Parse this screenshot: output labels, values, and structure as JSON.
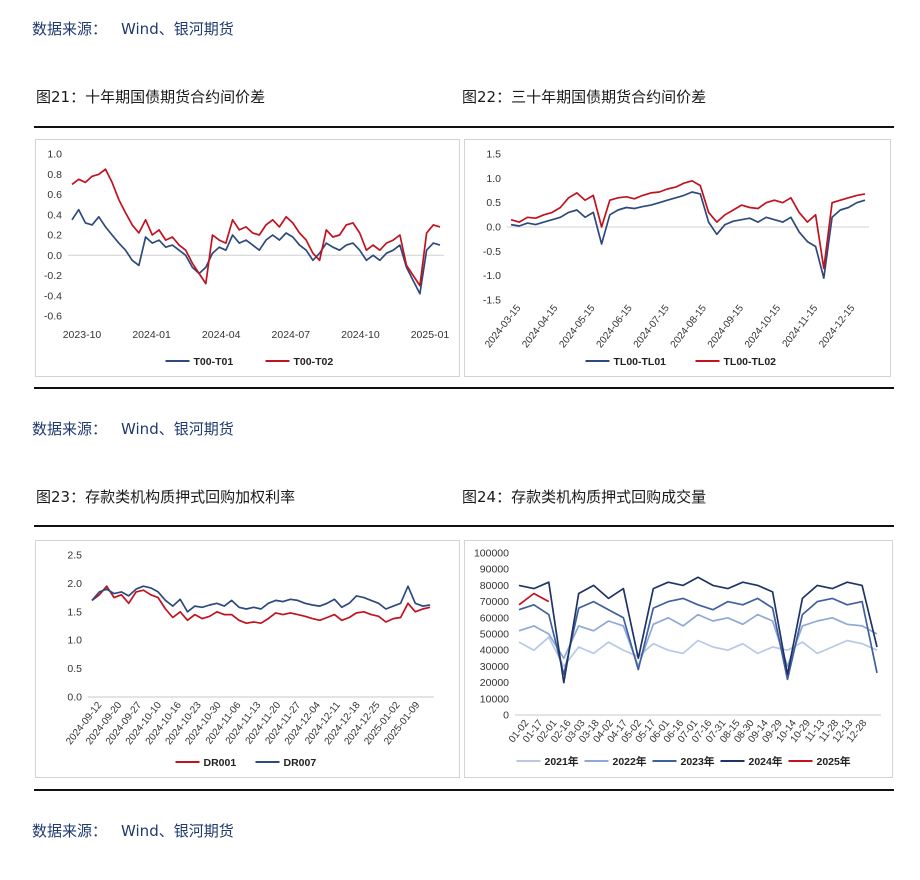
{
  "source_top": {
    "label": "数据来源：",
    "value": "Wind、银河期货"
  },
  "source_mid": {
    "label": "数据来源：",
    "value": "Wind、银河期货"
  },
  "source_bottom": {
    "label": "数据来源：",
    "value": "Wind、银河期货"
  },
  "titles": {
    "fig21": "图21：十年期国债期货合约间价差",
    "fig22": "图22：三十年期国债期货合约间价差",
    "fig23": "图23：存款类机构质押式回购加权利率",
    "fig24": "图24：存款类机构质押式回购成交量"
  },
  "colors": {
    "navy": "#2e4a7d",
    "red": "#c1121f",
    "y2021": "#b7c9e6",
    "y2022": "#8fa9d6",
    "y2023": "#3f5f9e",
    "y2024": "#1f3464",
    "y2025": "#c1121f"
  },
  "chart_data": [
    {
      "id": "fig21",
      "type": "line",
      "x_ticks": [
        "2023-10",
        "2024-01",
        "2024-04",
        "2024-07",
        "2024-10",
        "2025-01"
      ],
      "ylim": [
        -0.6,
        1.0
      ],
      "y_ticks": [
        "1.0",
        "0.8",
        "0.6",
        "0.4",
        "0.2",
        "0.0",
        "-0.2",
        "-0.4",
        "-0.6"
      ],
      "series": [
        {
          "name": "T00-T01",
          "color": "#2e4a7d",
          "values": [
            0.35,
            0.45,
            0.32,
            0.3,
            0.38,
            0.28,
            0.2,
            0.12,
            0.05,
            -0.05,
            -0.1,
            0.18,
            0.12,
            0.15,
            0.08,
            0.1,
            0.05,
            0.0,
            -0.12,
            -0.18,
            -0.12,
            0.02,
            0.08,
            0.05,
            0.2,
            0.12,
            0.15,
            0.1,
            0.05,
            0.15,
            0.2,
            0.15,
            0.22,
            0.18,
            0.1,
            0.05,
            -0.05,
            0.02,
            0.12,
            0.08,
            0.05,
            0.1,
            0.12,
            0.05,
            -0.05,
            0.0,
            -0.05,
            0.02,
            0.05,
            0.1,
            -0.12,
            -0.25,
            -0.38,
            0.05,
            0.12,
            0.1
          ]
        },
        {
          "name": "T00-T02",
          "color": "#c1121f",
          "values": [
            0.7,
            0.75,
            0.72,
            0.78,
            0.8,
            0.85,
            0.72,
            0.55,
            0.42,
            0.3,
            0.22,
            0.35,
            0.2,
            0.25,
            0.15,
            0.18,
            0.1,
            0.05,
            -0.08,
            -0.18,
            -0.28,
            0.2,
            0.15,
            0.12,
            0.35,
            0.25,
            0.28,
            0.22,
            0.2,
            0.3,
            0.35,
            0.28,
            0.38,
            0.32,
            0.22,
            0.15,
            0.02,
            -0.05,
            0.25,
            0.18,
            0.2,
            0.3,
            0.32,
            0.22,
            0.05,
            0.1,
            0.05,
            0.12,
            0.15,
            0.2,
            -0.1,
            -0.2,
            -0.3,
            0.22,
            0.3,
            0.28
          ]
        }
      ]
    },
    {
      "id": "fig22",
      "type": "line",
      "x_ticks": [
        "2024-03-15",
        "2024-04-15",
        "2024-05-15",
        "2024-06-15",
        "2024-07-15",
        "2024-08-15",
        "2024-09-15",
        "2024-10-15",
        "2024-11-15",
        "2024-12-15"
      ],
      "ylim": [
        -1.5,
        1.5
      ],
      "y_ticks": [
        "1.5",
        "1.0",
        "0.5",
        "0.0",
        "-0.5",
        "-1.0",
        "-1.5"
      ],
      "series": [
        {
          "name": "TL00-TL01",
          "color": "#2e4a7d",
          "values": [
            0.05,
            0.02,
            0.08,
            0.05,
            0.1,
            0.15,
            0.2,
            0.3,
            0.35,
            0.2,
            0.3,
            -0.35,
            0.25,
            0.35,
            0.4,
            0.38,
            0.42,
            0.45,
            0.5,
            0.55,
            0.6,
            0.65,
            0.72,
            0.68,
            0.1,
            -0.15,
            0.05,
            0.12,
            0.15,
            0.18,
            0.1,
            0.2,
            0.15,
            0.1,
            0.2,
            -0.1,
            -0.3,
            -0.4,
            -1.05,
            0.2,
            0.35,
            0.4,
            0.5,
            0.55
          ]
        },
        {
          "name": "TL00-TL02",
          "color": "#c1121f",
          "values": [
            0.15,
            0.1,
            0.2,
            0.18,
            0.25,
            0.3,
            0.4,
            0.6,
            0.7,
            0.55,
            0.65,
            0.0,
            0.55,
            0.6,
            0.62,
            0.58,
            0.65,
            0.7,
            0.72,
            0.78,
            0.82,
            0.9,
            0.95,
            0.85,
            0.3,
            0.1,
            0.25,
            0.35,
            0.45,
            0.4,
            0.38,
            0.5,
            0.55,
            0.5,
            0.6,
            0.3,
            0.1,
            0.25,
            -0.85,
            0.5,
            0.55,
            0.6,
            0.65,
            0.68
          ]
        }
      ]
    },
    {
      "id": "fig23",
      "type": "line",
      "x_ticks": [
        "2024-09-12",
        "2024-09-20",
        "2024-09-27",
        "2024-10-10",
        "2024-10-16",
        "2024-10-23",
        "2024-10-30",
        "2024-11-06",
        "2024-11-13",
        "2024-11-20",
        "2024-11-27",
        "2024-12-04",
        "2024-12-11",
        "2024-12-18",
        "2024-12-25",
        "2025-01-02",
        "2025-01-09"
      ],
      "ylim": [
        0,
        2.5
      ],
      "y_ticks": [
        "2.5",
        "2.0",
        "1.5",
        "1.0",
        "0.5",
        "0.0"
      ],
      "series": [
        {
          "name": "DR001",
          "color": "#c1121f",
          "values": [
            1.7,
            1.8,
            1.95,
            1.75,
            1.8,
            1.65,
            1.85,
            1.88,
            1.8,
            1.75,
            1.55,
            1.4,
            1.5,
            1.35,
            1.45,
            1.38,
            1.42,
            1.5,
            1.45,
            1.45,
            1.35,
            1.3,
            1.32,
            1.3,
            1.38,
            1.48,
            1.45,
            1.48,
            1.45,
            1.42,
            1.38,
            1.35,
            1.4,
            1.45,
            1.35,
            1.4,
            1.48,
            1.5,
            1.45,
            1.42,
            1.32,
            1.38,
            1.4,
            1.65,
            1.5,
            1.55,
            1.58
          ]
        },
        {
          "name": "DR007",
          "color": "#2e4a7d",
          "values": [
            1.7,
            1.85,
            1.9,
            1.82,
            1.85,
            1.78,
            1.9,
            1.95,
            1.92,
            1.85,
            1.7,
            1.6,
            1.72,
            1.5,
            1.6,
            1.58,
            1.62,
            1.65,
            1.6,
            1.7,
            1.58,
            1.55,
            1.58,
            1.55,
            1.65,
            1.7,
            1.68,
            1.72,
            1.7,
            1.65,
            1.62,
            1.6,
            1.65,
            1.72,
            1.58,
            1.65,
            1.78,
            1.75,
            1.7,
            1.65,
            1.55,
            1.6,
            1.65,
            1.95,
            1.65,
            1.6,
            1.62
          ]
        }
      ]
    },
    {
      "id": "fig24",
      "type": "line",
      "x_ticks": [
        "01-02",
        "01-17",
        "02-01",
        "02-16",
        "03-03",
        "03-18",
        "04-02",
        "04-17",
        "05-02",
        "05-17",
        "06-01",
        "06-16",
        "07-01",
        "07-16",
        "07-31",
        "08-15",
        "08-30",
        "09-14",
        "09-29",
        "10-14",
        "10-29",
        "11-13",
        "11-28",
        "12-13",
        "12-28"
      ],
      "ylim": [
        0,
        100000
      ],
      "y_ticks": [
        "100000",
        "90000",
        "80000",
        "70000",
        "60000",
        "50000",
        "40000",
        "30000",
        "20000",
        "10000",
        "0"
      ],
      "series": [
        {
          "name": "2021年",
          "color": "#b7c9e6",
          "values": [
            45000,
            40000,
            48000,
            30000,
            42000,
            38000,
            45000,
            40000,
            36000,
            44000,
            40000,
            38000,
            46000,
            42000,
            40000,
            44000,
            38000,
            42000,
            40000,
            45000,
            38000,
            42000,
            46000,
            44000,
            40000
          ]
        },
        {
          "name": "2022年",
          "color": "#8fa9d6",
          "values": [
            52000,
            55000,
            50000,
            35000,
            55000,
            52000,
            58000,
            55000,
            30000,
            56000,
            60000,
            55000,
            62000,
            58000,
            60000,
            56000,
            62000,
            58000,
            30000,
            55000,
            58000,
            60000,
            56000,
            55000,
            50000
          ]
        },
        {
          "name": "2023年",
          "color": "#3f5f9e",
          "values": [
            65000,
            68000,
            62000,
            25000,
            66000,
            70000,
            65000,
            60000,
            28000,
            66000,
            70000,
            72000,
            68000,
            65000,
            70000,
            68000,
            72000,
            66000,
            22000,
            62000,
            70000,
            72000,
            68000,
            70000,
            26000
          ]
        },
        {
          "name": "2024年",
          "color": "#1f3464",
          "values": [
            80000,
            78000,
            82000,
            20000,
            75000,
            80000,
            72000,
            78000,
            35000,
            78000,
            82000,
            80000,
            85000,
            80000,
            78000,
            82000,
            80000,
            76000,
            25000,
            72000,
            80000,
            78000,
            82000,
            80000,
            42000
          ]
        },
        {
          "name": "2025年",
          "color": "#c1121f",
          "values": [
            68000,
            75000,
            70000
          ]
        }
      ]
    }
  ]
}
